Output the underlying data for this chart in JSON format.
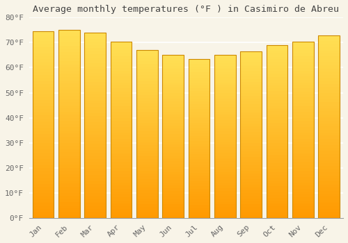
{
  "title": "Average monthly temperatures (°F ) in Casimiro de Abreu",
  "months": [
    "Jan",
    "Feb",
    "Mar",
    "Apr",
    "May",
    "Jun",
    "Jul",
    "Aug",
    "Sep",
    "Oct",
    "Nov",
    "Dec"
  ],
  "values": [
    74.5,
    75.0,
    74.0,
    70.5,
    67.0,
    65.0,
    63.5,
    65.0,
    66.5,
    69.0,
    70.5,
    73.0
  ],
  "bar_color_top": "#FFE066",
  "bar_color_bottom": "#FF9900",
  "bar_edge_color": "#CC8800",
  "background_color": "#F8F4E8",
  "plot_bg_color": "#F8F4E8",
  "grid_color": "#FFFFFF",
  "text_color": "#666666",
  "ylim": [
    0,
    80
  ],
  "yticks": [
    0,
    10,
    20,
    30,
    40,
    50,
    60,
    70,
    80
  ],
  "title_fontsize": 9.5,
  "tick_fontsize": 8,
  "font_family": "monospace"
}
